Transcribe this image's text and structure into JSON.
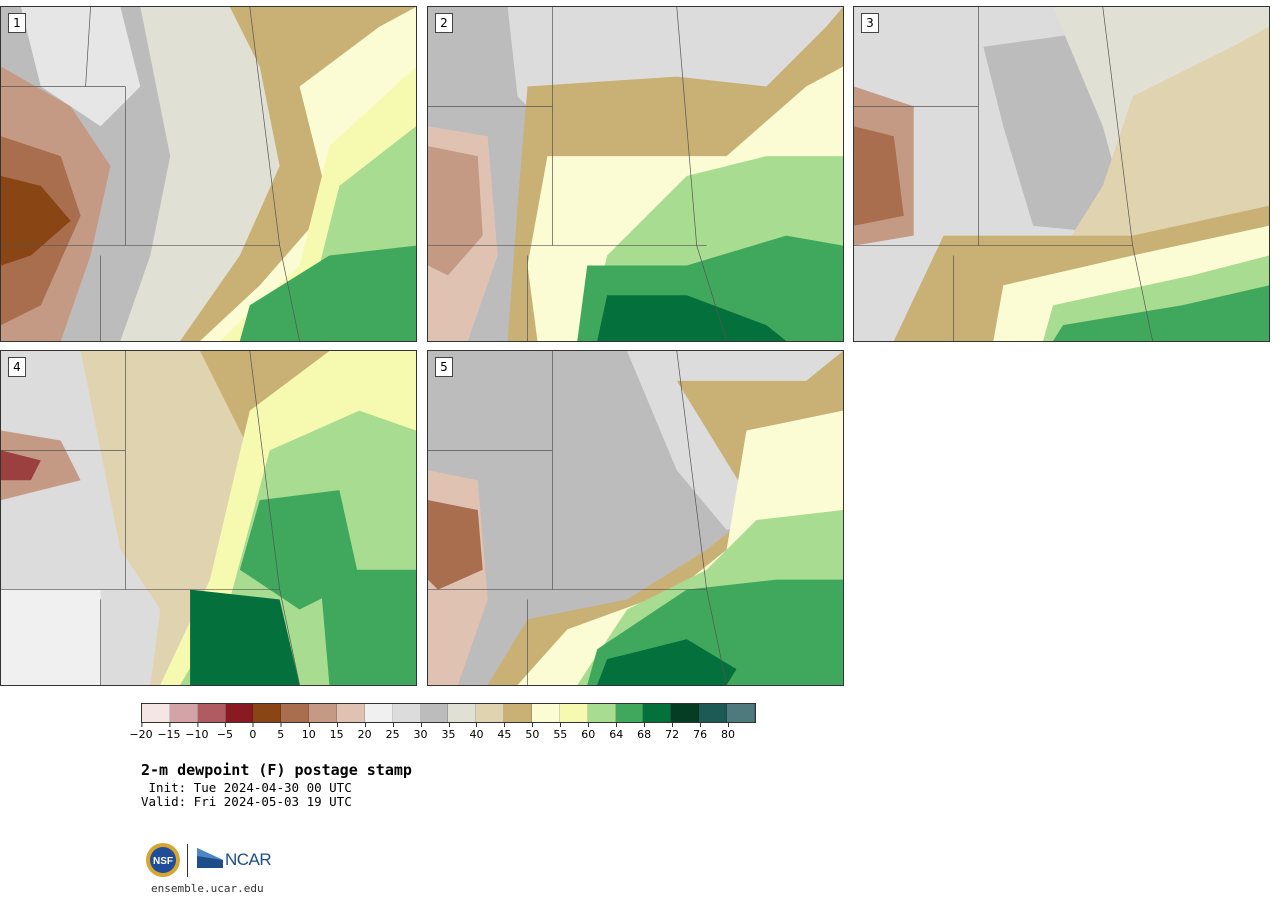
{
  "panels": [
    {
      "id": "1",
      "scenario": "dry-west-moist-east"
    },
    {
      "id": "2",
      "scenario": "moist-south-central"
    },
    {
      "id": "3",
      "scenario": "moist-southeast-corner"
    },
    {
      "id": "4",
      "scenario": "moist-south"
    },
    {
      "id": "5",
      "scenario": "moist-southeast"
    }
  ],
  "colorbar": {
    "colors": [
      "#f5e6e6",
      "#d4a3a8",
      "#b05a62",
      "#8a1a22",
      "#8a4514",
      "#a86e4e",
      "#c49a84",
      "#dfc2b2",
      "#f0f0f0",
      "#dcdcdc",
      "#bcbcbc",
      "#e0e0d4",
      "#e0d4b0",
      "#c9b074",
      "#fcfcd4",
      "#f6fab0",
      "#a8dc90",
      "#3fa85c",
      "#04703c",
      "#053d24",
      "#1d5a56",
      "#4e7a7e"
    ],
    "tick_labels": [
      "−20",
      "−15",
      "−10",
      "−5",
      "0",
      "5",
      "10",
      "15",
      "20",
      "25",
      "30",
      "35",
      "40",
      "45",
      "50",
      "55",
      "60",
      "64",
      "68",
      "72",
      "76",
      "80"
    ]
  },
  "title": "2-m dewpoint (F) postage stamp",
  "init": " Init: Tue 2024-04-30 00 UTC",
  "valid": "Valid: Fri 2024-05-03 19 UTC",
  "logos": {
    "nsf": "NSF",
    "ncar": "NCAR"
  },
  "site": "ensemble.ucar.edu"
}
